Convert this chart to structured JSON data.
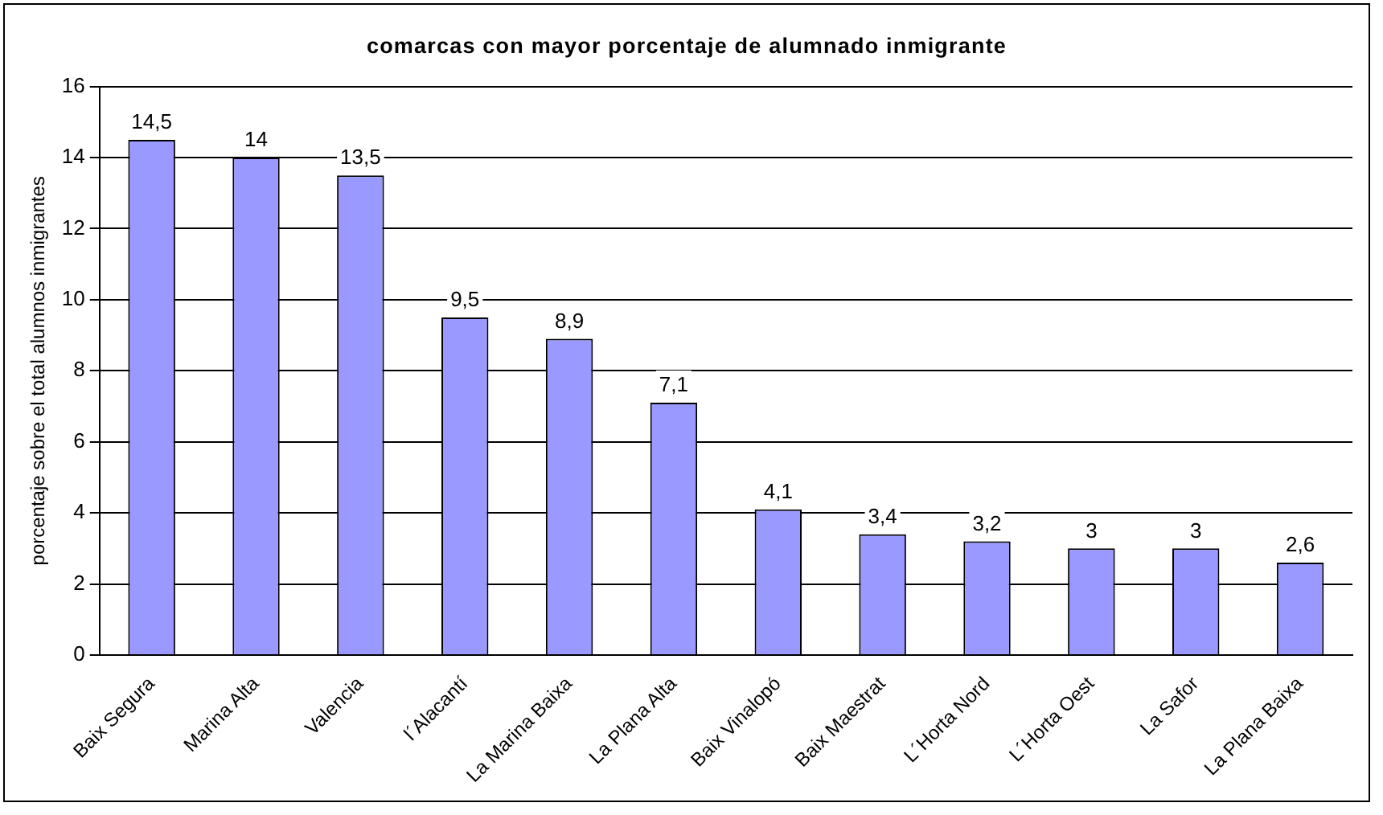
{
  "chart_data": {
    "type": "bar",
    "title": "comarcas con mayor porcentaje de alumnado inmigrante",
    "ylabel": "porcentaje sobre el total alumnos inmigrantes",
    "categories": [
      "Baix Segura",
      "Marina Alta",
      "Valencia",
      "l´Alacantí",
      "La Marina Baixa",
      "La Plana Alta",
      "Baix Vinalopó",
      "Baix Maestrat",
      "L´Horta Nord",
      "L´Horta Oest",
      "La Safor",
      "La Plana Baixa"
    ],
    "values": [
      14.5,
      14,
      13.5,
      9.5,
      8.9,
      7.1,
      4.1,
      3.4,
      3.2,
      3,
      3,
      2.6
    ],
    "value_labels": [
      "14,5",
      "14",
      "13,5",
      "9,5",
      "8,9",
      "7,1",
      "4,1",
      "3,4",
      "3,2",
      "3",
      "3",
      "2,6"
    ],
    "color": "#9999ff",
    "ylim": [
      0,
      16
    ],
    "yticks": [
      0,
      2,
      4,
      6,
      8,
      10,
      12,
      14,
      16
    ],
    "grid": "y",
    "legend": false
  }
}
